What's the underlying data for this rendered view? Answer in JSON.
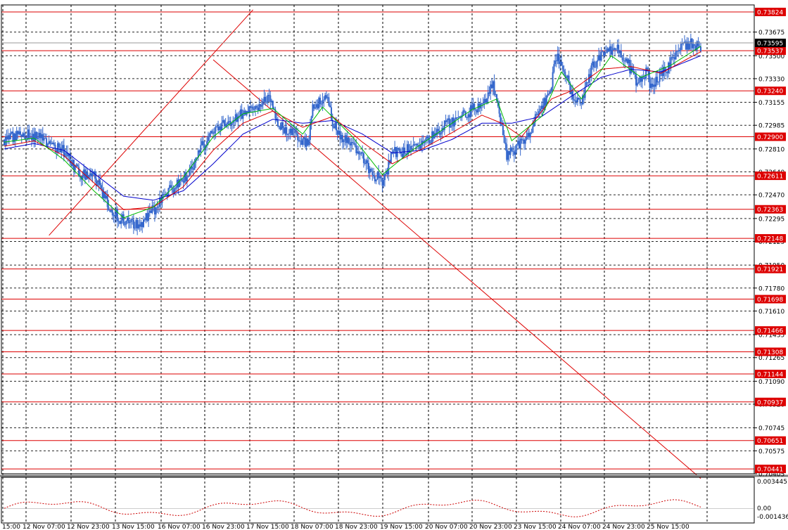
{
  "chart_data": {
    "type": "candlestick",
    "title": "",
    "grid": true,
    "colors": {
      "background": "#ffffff",
      "candle": "#3366cc",
      "ma_fast": "#00bb00",
      "ma_mid": "#dd0000",
      "ma_slow": "#0000cc",
      "level_line": "#dd0000",
      "level_label_bg": "#dd0000",
      "trendline": "#dd0000",
      "osc_line": "#cc0000",
      "grid": "#000000",
      "current_price_bg": "#000000"
    },
    "price_axis": {
      "ylim": [
        0.70405,
        0.73824
      ],
      "ticks": [
        "0.73675",
        "0.73500",
        "0.73330",
        "0.73155",
        "0.72985",
        "0.72810",
        "0.72640",
        "0.72470",
        "0.72295",
        "0.72125",
        "0.71950",
        "0.71780",
        "0.71610",
        "0.71435",
        "0.71265",
        "0.71090",
        "0.70920",
        "0.70745",
        "0.70575",
        "0.70405"
      ]
    },
    "current_price": "0.73595",
    "levels": [
      "0.73824",
      "0.73537",
      "0.73240",
      "0.72900",
      "0.72611",
      "0.72363",
      "0.72148",
      "0.71921",
      "0.71698",
      "0.71466",
      "0.71308",
      "0.71144",
      "0.70937",
      "0.70651",
      "0.70441"
    ],
    "time_axis": {
      "labels": [
        "15:00",
        "12 Nov 07:00",
        "12 Nov 23:00",
        "13 Nov 15:00",
        "16 Nov 07:00",
        "16 Nov 23:00",
        "17 Nov 15:00",
        "18 Nov 07:00",
        "18 Nov 23:00",
        "19 Nov 15:00",
        "20 Nov 07:00",
        "20 Nov 23:00",
        "23 Nov 15:00",
        "24 Nov 07:00",
        "24 Nov 23:00",
        "25 Nov 15:00"
      ]
    },
    "close_path": [
      [
        0,
        0.7288
      ],
      [
        4,
        0.7292
      ],
      [
        8,
        0.7289
      ],
      [
        12,
        0.7279
      ],
      [
        15,
        0.7262
      ],
      [
        18,
        0.726
      ],
      [
        20,
        0.7247
      ],
      [
        22,
        0.7233
      ],
      [
        24,
        0.7228
      ],
      [
        26,
        0.7226
      ],
      [
        27,
        0.7224
      ],
      [
        29,
        0.7232
      ],
      [
        31,
        0.724
      ],
      [
        33,
        0.7249
      ],
      [
        36,
        0.7258
      ],
      [
        38,
        0.7268
      ],
      [
        40,
        0.7285
      ],
      [
        42,
        0.7292
      ],
      [
        45,
        0.7302
      ],
      [
        48,
        0.7308
      ],
      [
        51,
        0.7312
      ],
      [
        52,
        0.7318
      ],
      [
        53,
        0.732
      ],
      [
        55,
        0.73
      ],
      [
        57,
        0.7295
      ],
      [
        59,
        0.729
      ],
      [
        61,
        0.7285
      ],
      [
        62,
        0.731
      ],
      [
        64,
        0.7318
      ],
      [
        65,
        0.732
      ],
      [
        66,
        0.73
      ],
      [
        68,
        0.729
      ],
      [
        70,
        0.7285
      ],
      [
        72,
        0.7275
      ],
      [
        74,
        0.7262
      ],
      [
        76,
        0.7258
      ],
      [
        77,
        0.7265
      ],
      [
        78,
        0.728
      ],
      [
        80,
        0.7278
      ],
      [
        83,
        0.7284
      ],
      [
        86,
        0.729
      ],
      [
        89,
        0.73
      ],
      [
        92,
        0.7305
      ],
      [
        95,
        0.7312
      ],
      [
        97,
        0.732
      ],
      [
        98,
        0.733
      ],
      [
        99,
        0.7318
      ],
      [
        100,
        0.7295
      ],
      [
        101,
        0.7275
      ],
      [
        103,
        0.7283
      ],
      [
        105,
        0.729
      ],
      [
        107,
        0.7305
      ],
      [
        109,
        0.7318
      ],
      [
        110,
        0.733
      ],
      [
        111,
        0.735
      ],
      [
        112,
        0.7343
      ],
      [
        113,
        0.7335
      ],
      [
        114,
        0.7322
      ],
      [
        116,
        0.7315
      ],
      [
        118,
        0.734
      ],
      [
        120,
        0.735
      ],
      [
        123,
        0.7355
      ],
      [
        125,
        0.7348
      ],
      [
        127,
        0.733
      ],
      [
        129,
        0.7338
      ],
      [
        130,
        0.7328
      ],
      [
        132,
        0.7335
      ],
      [
        134,
        0.7345
      ],
      [
        136,
        0.7356
      ],
      [
        138,
        0.736
      ],
      [
        140,
        0.7356
      ]
    ],
    "ma_fast": [
      [
        0,
        0.7286
      ],
      [
        6,
        0.7289
      ],
      [
        12,
        0.7273
      ],
      [
        18,
        0.725
      ],
      [
        24,
        0.723
      ],
      [
        30,
        0.7238
      ],
      [
        36,
        0.726
      ],
      [
        42,
        0.729
      ],
      [
        48,
        0.7307
      ],
      [
        54,
        0.7311
      ],
      [
        60,
        0.7292
      ],
      [
        64,
        0.7312
      ],
      [
        70,
        0.729
      ],
      [
        76,
        0.7262
      ],
      [
        82,
        0.728
      ],
      [
        88,
        0.7295
      ],
      [
        94,
        0.731
      ],
      [
        99,
        0.7318
      ],
      [
        102,
        0.7287
      ],
      [
        108,
        0.7305
      ],
      [
        112,
        0.7338
      ],
      [
        116,
        0.7318
      ],
      [
        122,
        0.735
      ],
      [
        128,
        0.7334
      ],
      [
        134,
        0.7343
      ],
      [
        140,
        0.7357
      ]
    ],
    "ma_mid": [
      [
        0,
        0.7283
      ],
      [
        6,
        0.7287
      ],
      [
        12,
        0.7276
      ],
      [
        18,
        0.7256
      ],
      [
        24,
        0.7236
      ],
      [
        30,
        0.7238
      ],
      [
        36,
        0.7253
      ],
      [
        42,
        0.728
      ],
      [
        48,
        0.73
      ],
      [
        54,
        0.7309
      ],
      [
        60,
        0.7297
      ],
      [
        66,
        0.7305
      ],
      [
        72,
        0.7286
      ],
      [
        78,
        0.727
      ],
      [
        84,
        0.7281
      ],
      [
        90,
        0.7293
      ],
      [
        96,
        0.7306
      ],
      [
        100,
        0.73
      ],
      [
        104,
        0.729
      ],
      [
        110,
        0.7318
      ],
      [
        114,
        0.7324
      ],
      [
        120,
        0.734
      ],
      [
        126,
        0.7342
      ],
      [
        132,
        0.7337
      ],
      [
        140,
        0.7353
      ]
    ],
    "ma_slow": [
      [
        0,
        0.7281
      ],
      [
        6,
        0.7285
      ],
      [
        12,
        0.728
      ],
      [
        18,
        0.7263
      ],
      [
        24,
        0.7246
      ],
      [
        30,
        0.7243
      ],
      [
        36,
        0.725
      ],
      [
        42,
        0.727
      ],
      [
        48,
        0.7292
      ],
      [
        54,
        0.7303
      ],
      [
        60,
        0.73
      ],
      [
        66,
        0.7302
      ],
      [
        72,
        0.7292
      ],
      [
        78,
        0.7278
      ],
      [
        84,
        0.728
      ],
      [
        90,
        0.7288
      ],
      [
        96,
        0.73
      ],
      [
        102,
        0.73
      ],
      [
        108,
        0.7305
      ],
      [
        114,
        0.732
      ],
      [
        120,
        0.7334
      ],
      [
        126,
        0.734
      ],
      [
        132,
        0.7338
      ],
      [
        140,
        0.735
      ]
    ],
    "trendlines": [
      {
        "from": [
          9,
          0.7217
        ],
        "to": [
          50,
          0.7384
        ]
      },
      {
        "from": [
          42,
          0.7347
        ],
        "to": [
          140,
          0.7037
        ]
      }
    ],
    "oscillator": {
      "ticks": [
        "0.003445",
        "0.00",
        "-0.001436"
      ],
      "ylim": [
        -0.001436,
        0.003445
      ]
    }
  }
}
